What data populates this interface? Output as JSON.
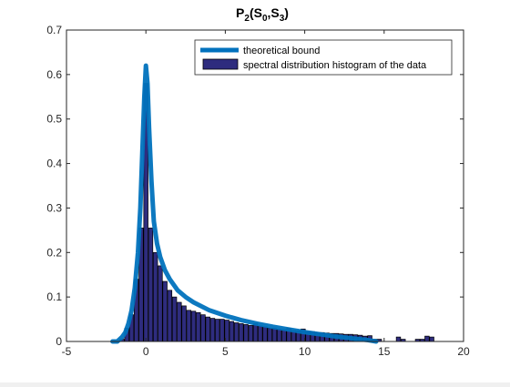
{
  "chart_data": {
    "type": "bar",
    "title": {
      "main": "P",
      "sub1": "2",
      "open": "(S",
      "sub2": "0",
      "mid": ",S",
      "sub3": "3",
      "close": ")"
    },
    "xlabel": "",
    "ylabel": "",
    "xlim": [
      -5,
      20
    ],
    "ylim": [
      0,
      0.7
    ],
    "xticks": [
      "-5",
      "0",
      "5",
      "10",
      "15",
      "20"
    ],
    "yticks": [
      "0",
      "0.1",
      "0.2",
      "0.3",
      "0.4",
      "0.5",
      "0.6",
      "0.7"
    ],
    "legend": {
      "placement": "top-right",
      "entries": [
        "theoretical bound",
        "spectral distribution histogram of the  data"
      ]
    },
    "colors": {
      "line": "#0072bd",
      "bars": "#2e2c7e",
      "bar_edge": "#000000"
    },
    "histogram": {
      "name": "spectral distribution histogram of the  data",
      "bin_width": 0.3,
      "x": [
        -1.5,
        -1.2,
        -0.9,
        -0.6,
        -0.3,
        0,
        0.3,
        0.6,
        0.9,
        1.2,
        1.5,
        1.8,
        2.1,
        2.4,
        2.7,
        3.0,
        3.3,
        3.6,
        3.9,
        4.2,
        4.5,
        4.8,
        5.1,
        5.4,
        5.7,
        6.0,
        6.3,
        6.6,
        6.9,
        7.2,
        7.5,
        7.8,
        8.1,
        8.4,
        8.7,
        9.0,
        9.3,
        9.6,
        9.9,
        10.2,
        10.5,
        10.8,
        11.1,
        11.4,
        11.7,
        12.0,
        12.3,
        12.6,
        12.9,
        13.2,
        13.5,
        13.8,
        14.1,
        14.4,
        14.7,
        15.9,
        16.2,
        17.1,
        17.4,
        17.7,
        18.0
      ],
      "values": [
        0.005,
        0.03,
        0.06,
        0.14,
        0.255,
        0.58,
        0.255,
        0.2,
        0.17,
        0.135,
        0.115,
        0.1,
        0.088,
        0.08,
        0.07,
        0.068,
        0.065,
        0.06,
        0.055,
        0.052,
        0.05,
        0.05,
        0.048,
        0.045,
        0.042,
        0.04,
        0.038,
        0.036,
        0.04,
        0.035,
        0.033,
        0.03,
        0.03,
        0.028,
        0.027,
        0.03,
        0.025,
        0.024,
        0.028,
        0.022,
        0.022,
        0.02,
        0.02,
        0.019,
        0.018,
        0.018,
        0.017,
        0.016,
        0.016,
        0.015,
        0.014,
        0.012,
        0.013,
        0.005,
        0.005,
        0.01,
        0.005,
        0.005,
        0.005,
        0.012,
        0.01
      ]
    },
    "series": [
      {
        "name": "theoretical bound",
        "x": [
          -2.1,
          -1.8,
          -1.5,
          -1.3,
          -1.1,
          -0.9,
          -0.7,
          -0.5,
          -0.35,
          -0.2,
          -0.1,
          0,
          0.1,
          0.2,
          0.35,
          0.5,
          0.7,
          0.9,
          1.2,
          1.5,
          2,
          2.5,
          3,
          4,
          5,
          6,
          7,
          8,
          9,
          10,
          11,
          12,
          13,
          14,
          14.5
        ],
        "y": [
          0,
          0,
          0.01,
          0.02,
          0.04,
          0.07,
          0.12,
          0.2,
          0.3,
          0.45,
          0.55,
          0.62,
          0.58,
          0.48,
          0.36,
          0.27,
          0.22,
          0.19,
          0.16,
          0.14,
          0.115,
          0.1,
          0.088,
          0.07,
          0.058,
          0.048,
          0.04,
          0.033,
          0.027,
          0.021,
          0.016,
          0.011,
          0.007,
          0.003,
          0
        ]
      }
    ]
  }
}
